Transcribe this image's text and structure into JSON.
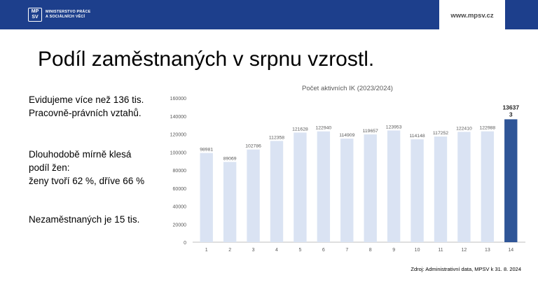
{
  "header": {
    "org_line1": "MINISTERSTVO PRÁCE",
    "org_line2": "A SOCIÁLNÍCH VĚCÍ",
    "website": "www.mpsv.cz",
    "logo_text": "MP SV",
    "logo_icon": "mpsv-logo-icon",
    "bar_color": "#1d3f8c"
  },
  "slide": {
    "title": "Podíl zaměstnaných v srpnu vzrostl.",
    "points": [
      {
        "lines": [
          "Evidujeme více než 136 tis.",
          "Pracovně-právních vztahů."
        ]
      },
      {
        "lines": [
          "Dlouhodobě mírně klesá",
          "podíl žen:",
          "ženy tvoří 62 %, dříve 66 %"
        ]
      },
      {
        "lines": [
          "Nezaměstnaných je 15 tis."
        ]
      }
    ],
    "source": "Zdroj: Administrativní data, MPSV k 31. 8. 2024"
  },
  "chart_data": {
    "type": "bar",
    "title": "Počet aktivních IK (2023/2024)",
    "categories": [
      "1",
      "2",
      "3",
      "4",
      "5",
      "6",
      "7",
      "8",
      "9",
      "10",
      "11",
      "12",
      "13",
      "14"
    ],
    "values": [
      98981,
      89069,
      102786,
      112358,
      121628,
      122940,
      114909,
      119657,
      123953,
      114148,
      117252,
      122410,
      122988,
      136373
    ],
    "data_labels": [
      "98981",
      "89069",
      "102786",
      "112358",
      "121628",
      "122940",
      "114909",
      "119657",
      "123953",
      "114148",
      "117252",
      "122410",
      "122988",
      "136373"
    ],
    "highlight_label": [
      "13637",
      "3"
    ],
    "ylim": [
      0,
      160000
    ],
    "yticks": [
      0,
      20000,
      40000,
      60000,
      80000,
      100000,
      120000,
      140000,
      160000
    ],
    "ytick_labels": [
      "0",
      "20000",
      "40000",
      "60000",
      "80000",
      "100000",
      "120000",
      "140000",
      "160000"
    ],
    "grid": false,
    "legend": "none",
    "colors": {
      "bar": "#dae3f3",
      "highlight": "#2f5597",
      "text": "#595959",
      "axis": "#bfbfbf"
    },
    "highlight_index": 13
  }
}
